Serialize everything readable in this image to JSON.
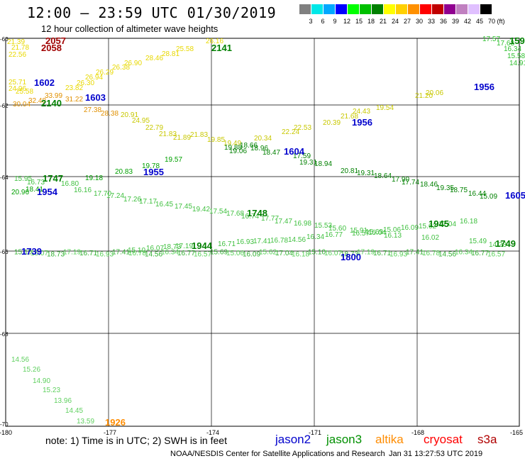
{
  "header": {
    "title": "12:00 – 23:59 UTC 01/30/2019",
    "subtitle": "12 hour collection of altimeter wave heights"
  },
  "legend": {
    "unit": "(ft)",
    "colors": [
      "#808080",
      "#00e8e8",
      "#00a8ff",
      "#0000ff",
      "#00ff00",
      "#00c000",
      "#008000",
      "#ffff00",
      "#ffd000",
      "#ff9000",
      "#ff0000",
      "#c00000",
      "#900090",
      "#c080c0",
      "#e0c0ff",
      "#000000"
    ],
    "labels": [
      "3",
      "6",
      "9",
      "12",
      "15",
      "18",
      "21",
      "24",
      "27",
      "30",
      "33",
      "36",
      "39",
      "42",
      "45",
      "70"
    ]
  },
  "axes": {
    "lon_labels": [
      "-180",
      "-177",
      "-174",
      "-171",
      "-168",
      "-165"
    ],
    "lat_labels": [
      "-60",
      "-62",
      "-64",
      "-66",
      "-68",
      "-70"
    ]
  },
  "footer": {
    "note": "note: 1) Time is in UTC; 2) SWH is in feet",
    "credit": "NOAA/NESDIS Center for Satellite Applications and Research",
    "stamp": "Jan 31 13:27:53 UTC 2019"
  },
  "satellites": [
    {
      "name": "jason2",
      "color": "#0000cc"
    },
    {
      "name": "jason3",
      "color": "#009000"
    },
    {
      "name": "altika",
      "color": "#ff8c00"
    },
    {
      "name": "cryosat",
      "color": "#ff0000"
    },
    {
      "name": "s3a",
      "color": "#b00000"
    }
  ],
  "tracks": [
    {
      "id": "t1",
      "color": "#e8d800",
      "values": [
        "21.39",
        "21.78",
        "22.56",
        "25.71",
        "24.96",
        "25.58",
        "23.82",
        "26.30",
        "26.94",
        "26.29",
        "26.38",
        "26.90",
        "28.46",
        "28.81",
        "25.58",
        "26.16"
      ]
    },
    {
      "id": "t2",
      "color": "#e09000",
      "values": [
        "30.04",
        "32.48",
        "33.99",
        "31.22",
        "27.38",
        "28.38"
      ]
    },
    {
      "id": "t3",
      "color": "#c8c800",
      "values": [
        "20.91",
        "24.95",
        "22.79",
        "21.83",
        "21.89",
        "21.83",
        "19.85",
        "19.49",
        "20.34",
        "22.24",
        "22.53",
        "20.39",
        "21.68",
        "24.43",
        "19.54",
        "21.20",
        "20.06"
      ]
    },
    {
      "id": "t4",
      "color": "#008000",
      "values": [
        "19.88",
        "19.06",
        "18.66",
        "18.96",
        "18.47",
        "17.59",
        "19.31",
        "18.94",
        "20.81",
        "19.31",
        "18.64",
        "17.90",
        "17.74",
        "18.46",
        "19.35",
        "18.75",
        "16.44",
        "15.09"
      ]
    },
    {
      "id": "t5",
      "color": "#40c040",
      "values": [
        "15.95",
        "16.73",
        "16.80",
        "16.16",
        "17.70",
        "17.24",
        "17.26",
        "17.17",
        "16.45",
        "17.45",
        "19.42",
        "17.54",
        "17.68",
        "16.74",
        "17.77",
        "17.47",
        "16.98",
        "15.53",
        "15.60",
        "15.91",
        "15.04",
        "16.13",
        "16.02",
        "15.49",
        "14.23",
        "13.42"
      ]
    },
    {
      "id": "t6",
      "color": "#00a000",
      "values": [
        "20.96",
        "18.41",
        "19.18",
        "20.83",
        "19.78",
        "19.57"
      ]
    },
    {
      "id": "t7",
      "color": "#40c040",
      "values": [
        "15.10",
        "16.07",
        "18.73",
        "17.19",
        "16.71",
        "16.93",
        "17.41",
        "16.78",
        "14.56",
        "16.34",
        "16.77",
        "16.57",
        "15.69",
        "15.06",
        "16.09",
        "15.62",
        "17.04",
        "16.18"
      ]
    },
    {
      "id": "t8",
      "color": "#60d060",
      "values": [
        "14.56",
        "15.26",
        "14.90",
        "15.23",
        "13.96",
        "14.45",
        "13.59"
      ]
    },
    {
      "id": "t9",
      "color": "#30c030",
      "values": [
        "17.57",
        "17.63",
        "16.34",
        "15.58",
        "14.91"
      ]
    }
  ],
  "pass_labels": [
    {
      "text": "2057",
      "color": "#a00000"
    },
    {
      "text": "2058",
      "color": "#a00000"
    },
    {
      "text": "1602",
      "color": "#0000cc"
    },
    {
      "text": "1603",
      "color": "#0000cc"
    },
    {
      "text": "2140",
      "color": "#008000"
    },
    {
      "text": "2141",
      "color": "#008000"
    },
    {
      "text": "1604",
      "color": "#0000cc"
    },
    {
      "text": "1956",
      "color": "#0000cc"
    },
    {
      "text": "1956",
      "color": "#0000cc"
    },
    {
      "text": "1747",
      "color": "#008000"
    },
    {
      "text": "1954",
      "color": "#0000cc"
    },
    {
      "text": "1955",
      "color": "#0000cc"
    },
    {
      "text": "1748",
      "color": "#008000"
    },
    {
      "text": "1945",
      "color": "#008000"
    },
    {
      "text": "1605",
      "color": "#0000cc"
    },
    {
      "text": "1739",
      "color": "#0000cc"
    },
    {
      "text": "1944",
      "color": "#008000"
    },
    {
      "text": "1800",
      "color": "#0000cc"
    },
    {
      "text": "1749",
      "color": "#008000"
    },
    {
      "text": "1926",
      "color": "#ff8c00"
    },
    {
      "text": "159",
      "color": "#008000"
    }
  ]
}
